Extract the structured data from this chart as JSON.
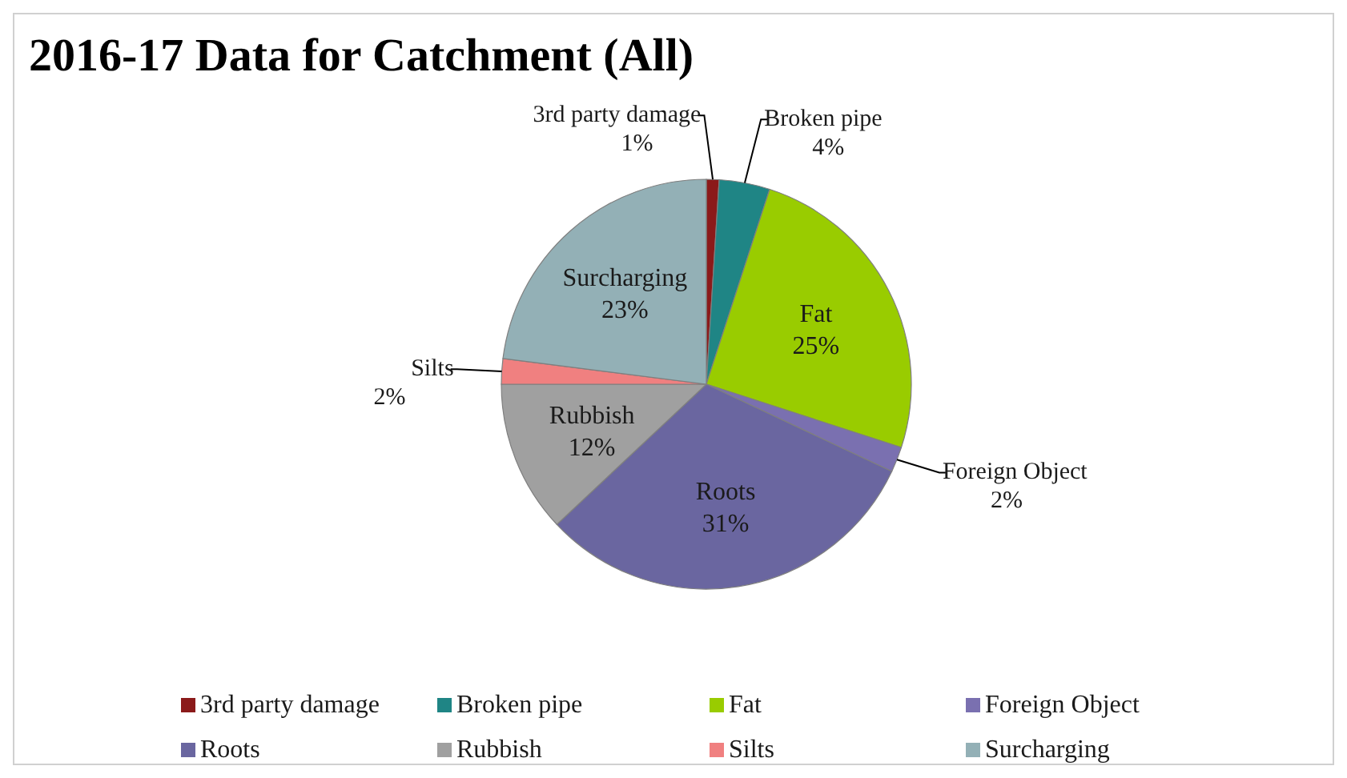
{
  "chart_data": {
    "type": "pie",
    "title": "2016-17 Data for Catchment (All)",
    "categories": [
      "3rd party damage",
      "Broken pipe",
      "Fat",
      "Foreign Object",
      "Roots",
      "Rubbish",
      "Silts",
      "Surcharging"
    ],
    "values": [
      1,
      4,
      25,
      2,
      31,
      12,
      2,
      23
    ],
    "colors": [
      "#8b1a1a",
      "#1f8585",
      "#99cc00",
      "#7a70b0",
      "#6a66a0",
      "#a0a0a0",
      "#f08080",
      "#93b0b6"
    ],
    "value_labels": [
      "1%",
      "4%",
      "25%",
      "2%",
      "31%",
      "12%",
      "2%",
      "23%"
    ],
    "legend": "bottom"
  }
}
